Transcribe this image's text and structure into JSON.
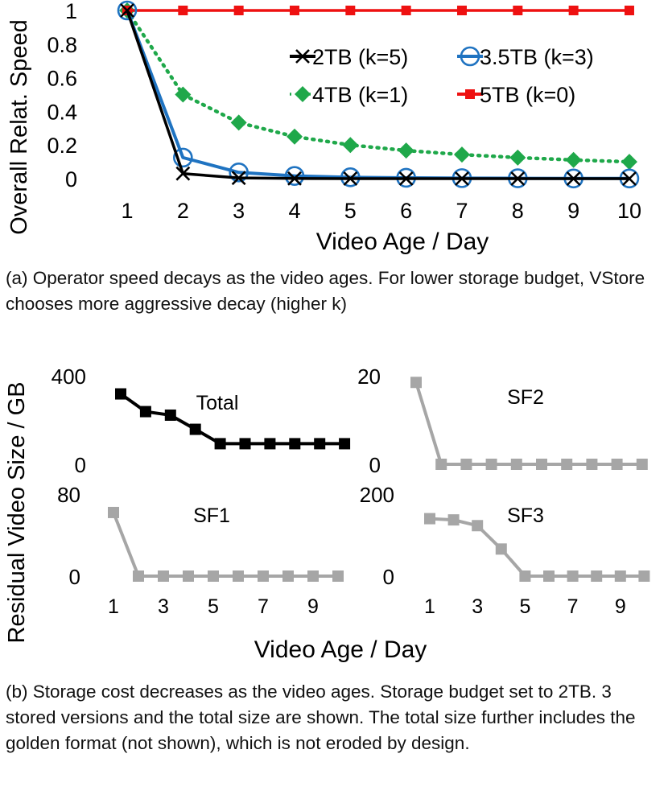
{
  "chart_data": [
    {
      "id": "speed",
      "type": "line",
      "xlabel": "Video Age / Day",
      "ylabel": "Overall Relat. Speed",
      "x": [
        1,
        2,
        3,
        4,
        5,
        6,
        7,
        8,
        9,
        10
      ],
      "xticks": [
        "1",
        "2",
        "3",
        "4",
        "5",
        "6",
        "7",
        "8",
        "9",
        "10"
      ],
      "yticks": [
        "0",
        "0.2",
        "0.4",
        "0.6",
        "0.8",
        "1"
      ],
      "ylim": [
        0,
        1
      ],
      "legend_position": "upper-right",
      "series": [
        {
          "name": "2TB (k=5)",
          "marker": "x",
          "line": "solid",
          "color": "#000000",
          "values": [
            1,
            0.03,
            0.004,
            0.001,
            0,
            0,
            0,
            0,
            0,
            0
          ]
        },
        {
          "name": "3.5TB (k=3)",
          "marker": "circle",
          "line": "solid",
          "color": "#1f73c1",
          "values": [
            1,
            0.125,
            0.037,
            0.016,
            0.008,
            0.005,
            0.003,
            0.002,
            0.001,
            0.001
          ]
        },
        {
          "name": "4TB (k=1)",
          "marker": "diamond",
          "line": "dotted",
          "color": "#1fa84a",
          "values": [
            1,
            0.5,
            0.333,
            0.25,
            0.2,
            0.167,
            0.143,
            0.125,
            0.111,
            0.1
          ]
        },
        {
          "name": "5TB (k=0)",
          "marker": "square",
          "line": "solid",
          "color": "#ee1111",
          "values": [
            1,
            1,
            1,
            1,
            1,
            1,
            1,
            1,
            1,
            1
          ]
        }
      ]
    },
    {
      "id": "size",
      "type": "line",
      "ylabel": "Residual Video Size / GB",
      "xlabel": "Video Age / Day",
      "x": [
        1,
        2,
        3,
        4,
        5,
        6,
        7,
        8,
        9,
        10
      ],
      "xticks": [
        "1",
        "3",
        "5",
        "7",
        "9"
      ],
      "panels": [
        {
          "name": "Total",
          "color": "#000000",
          "ylim": [
            0,
            400
          ],
          "yticks": [
            "0",
            "400"
          ],
          "values": [
            318,
            238,
            222,
            158,
            93,
            93,
            93,
            93,
            93,
            93
          ]
        },
        {
          "name": "SF2",
          "color": "#a6a6a6",
          "ylim": [
            0,
            20
          ],
          "yticks": [
            "0",
            "20"
          ],
          "values": [
            18.5,
            0,
            0,
            0,
            0,
            0,
            0,
            0,
            0,
            0
          ]
        },
        {
          "name": "SF1",
          "color": "#a6a6a6",
          "ylim": [
            0,
            80
          ],
          "yticks": [
            "0",
            "80"
          ],
          "values": [
            62,
            0,
            0,
            0,
            0,
            0,
            0,
            0,
            0,
            0
          ]
        },
        {
          "name": "SF3",
          "color": "#a6a6a6",
          "ylim": [
            0,
            200
          ],
          "yticks": [
            "0",
            "200"
          ],
          "values": [
            140,
            137,
            123,
            66,
            0,
            0,
            0,
            0,
            0,
            0
          ]
        }
      ]
    }
  ],
  "captions": {
    "a": "(a) Operator speed decays as the video ages. For lower storage budget, VStore chooses more aggressive decay (higher k)",
    "b": "(b) Storage cost decreases as the video ages. Storage budget set to 2TB. 3 stored versions and the total size are shown. The total size further includes the golden format (not shown), which is not eroded by design."
  }
}
